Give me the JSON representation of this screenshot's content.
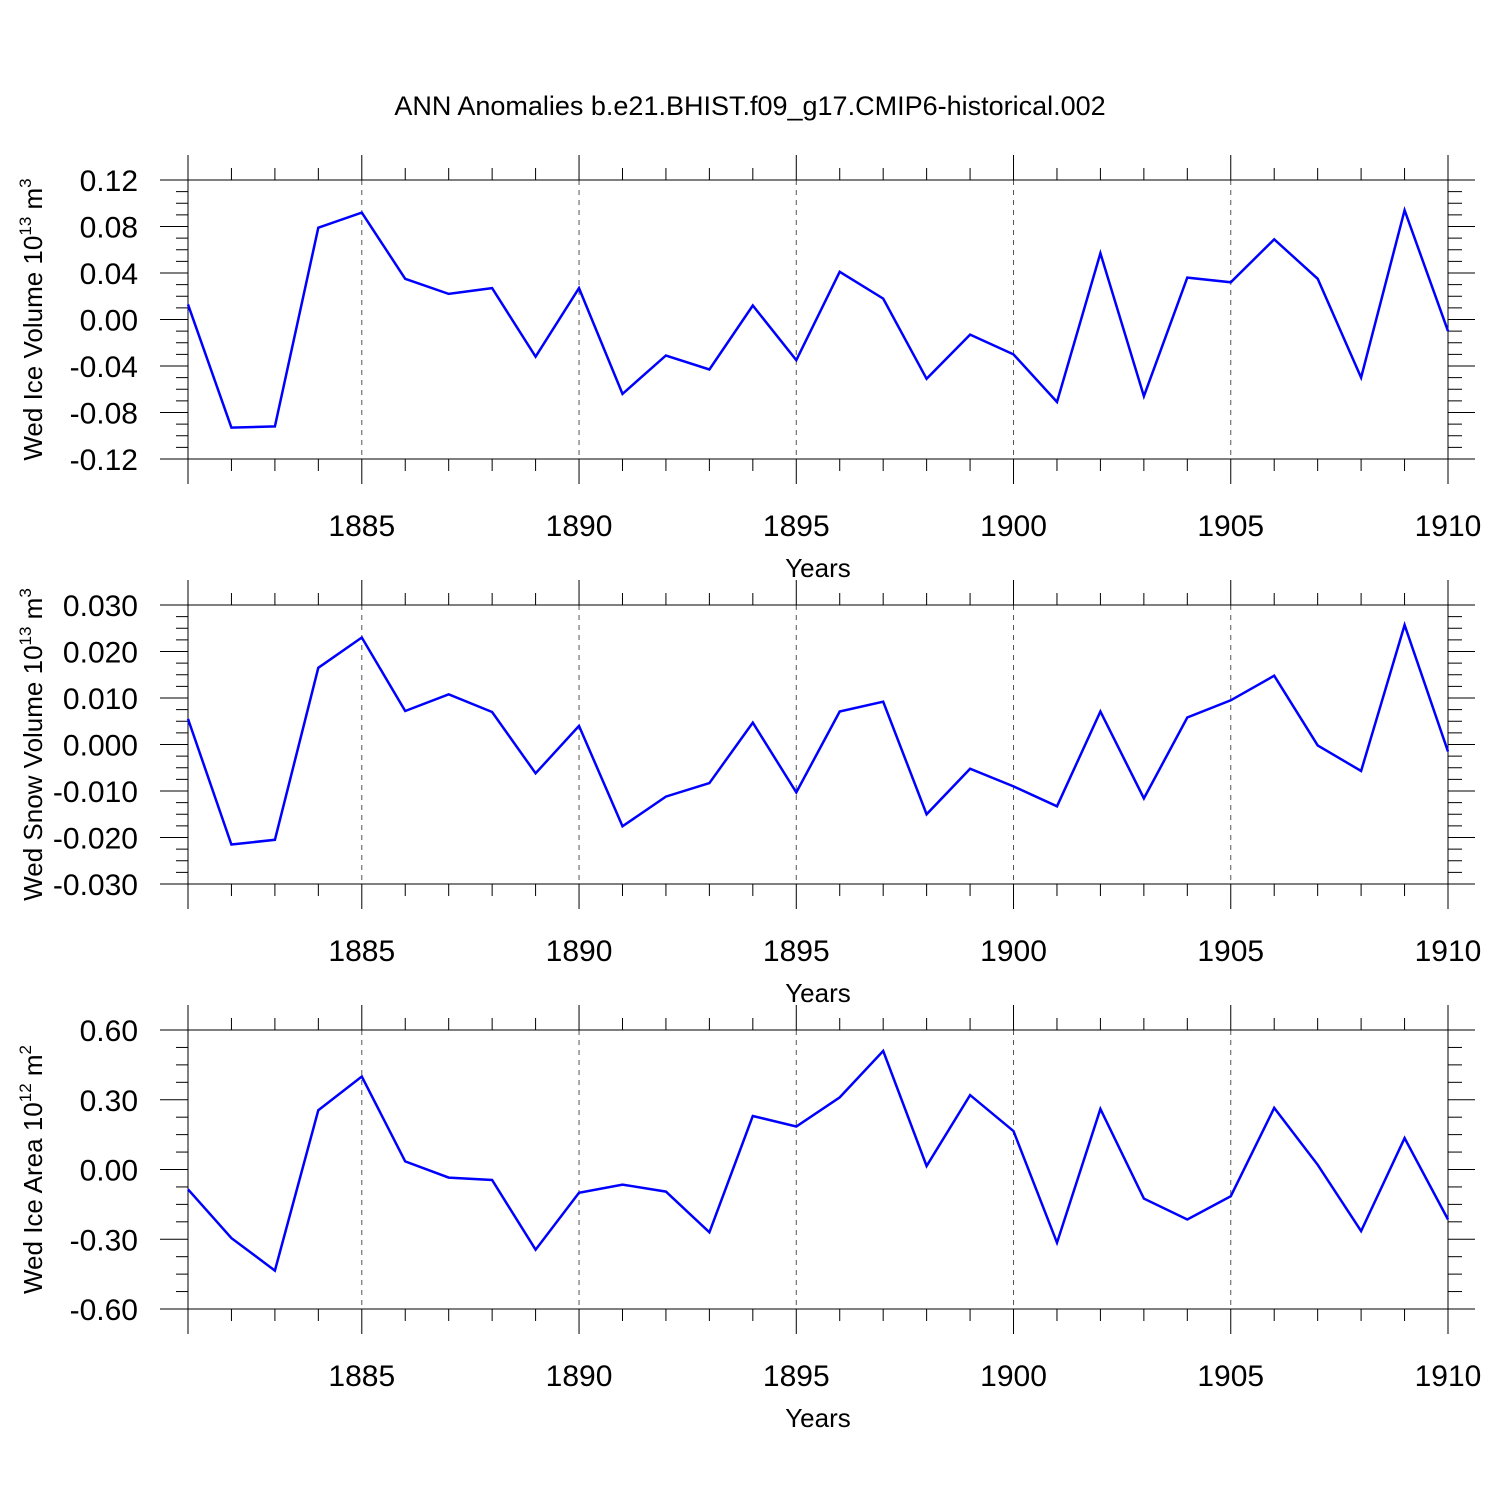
{
  "title": "ANN Anomalies b.e21.BHIST.f09_g17.CMIP6-historical.002",
  "line_color": "#0000ff",
  "chart_data": [
    {
      "type": "line",
      "ylabel": "Wed Ice Volume 10",
      "ylabel_exp": "13",
      "ylabel_unit": " m",
      "ylabel_unit_exp": "3",
      "xlabel": "Years",
      "ylim": [
        -0.12,
        0.12
      ],
      "yticks": [
        0.12,
        0.08,
        0.04,
        0.0,
        -0.04,
        -0.08,
        -0.12
      ],
      "ytick_labels": [
        "0.12",
        "0.08",
        "0.04",
        "0.00",
        "-0.04",
        "-0.08",
        "-0.12"
      ],
      "xlim": [
        1881,
        1910
      ],
      "xticks": [
        1885,
        1890,
        1895,
        1900,
        1905,
        1910
      ],
      "xtick_labels": [
        "1885",
        "1890",
        "1895",
        "1900",
        "1905",
        "1910"
      ],
      "grid": "vertical-dashed",
      "series": [
        {
          "x": [
            1881,
            1882,
            1883,
            1884,
            1885,
            1886,
            1887,
            1888,
            1889,
            1890,
            1891,
            1892,
            1893,
            1894,
            1895,
            1896,
            1897,
            1898,
            1899,
            1900,
            1901,
            1902,
            1903,
            1904,
            1905,
            1906,
            1907,
            1908,
            1909,
            1910
          ],
          "values": [
            0.013,
            -0.093,
            -0.092,
            0.079,
            0.092,
            0.035,
            0.022,
            0.027,
            -0.032,
            0.027,
            -0.064,
            -0.031,
            -0.043,
            0.012,
            -0.035,
            0.041,
            0.018,
            -0.051,
            -0.013,
            -0.03,
            -0.071,
            0.057,
            -0.066,
            0.036,
            0.032,
            0.069,
            0.035,
            -0.05,
            0.094,
            -0.01
          ]
        }
      ]
    },
    {
      "type": "line",
      "ylabel": "Wed Snow Volume 10",
      "ylabel_exp": "13",
      "ylabel_unit": " m",
      "ylabel_unit_exp": "3",
      "xlabel": "Years",
      "ylim": [
        -0.03,
        0.03
      ],
      "yticks": [
        0.03,
        0.02,
        0.01,
        0.0,
        -0.01,
        -0.02,
        -0.03
      ],
      "ytick_labels": [
        "0.030",
        "0.020",
        "0.010",
        "0.000",
        "-0.010",
        "-0.020",
        "-0.030"
      ],
      "xlim": [
        1881,
        1910
      ],
      "xticks": [
        1885,
        1890,
        1895,
        1900,
        1905,
        1910
      ],
      "xtick_labels": [
        "1885",
        "1890",
        "1895",
        "1900",
        "1905",
        "1910"
      ],
      "grid": "vertical-dashed",
      "series": [
        {
          "x": [
            1881,
            1882,
            1883,
            1884,
            1885,
            1886,
            1887,
            1888,
            1889,
            1890,
            1891,
            1892,
            1893,
            1894,
            1895,
            1896,
            1897,
            1898,
            1899,
            1900,
            1901,
            1902,
            1903,
            1904,
            1905,
            1906,
            1907,
            1908,
            1909,
            1910
          ],
          "values": [
            0.0055,
            -0.0215,
            -0.0205,
            0.0165,
            0.023,
            0.0072,
            0.0108,
            0.007,
            -0.0062,
            0.004,
            -0.0176,
            -0.0112,
            -0.0083,
            0.0047,
            -0.0103,
            0.0071,
            0.0092,
            -0.015,
            -0.0052,
            -0.009,
            -0.0133,
            0.0071,
            -0.0116,
            0.0058,
            0.0095,
            0.0148,
            -0.0002,
            -0.0057,
            0.0257,
            -0.0015
          ]
        }
      ]
    },
    {
      "type": "line",
      "ylabel": "Wed Ice Area 10",
      "ylabel_exp": "12",
      "ylabel_unit": " m",
      "ylabel_unit_exp": "2",
      "xlabel": "Years",
      "ylim": [
        -0.6,
        0.6
      ],
      "yticks": [
        0.6,
        0.3,
        0.0,
        -0.3,
        -0.6
      ],
      "ytick_labels": [
        "0.60",
        "0.30",
        "0.00",
        "-0.30",
        "-0.60"
      ],
      "xlim": [
        1881,
        1910
      ],
      "xticks": [
        1885,
        1890,
        1895,
        1900,
        1905,
        1910
      ],
      "xtick_labels": [
        "1885",
        "1890",
        "1895",
        "1900",
        "1905",
        "1910"
      ],
      "grid": "vertical-dashed",
      "series": [
        {
          "x": [
            1881,
            1882,
            1883,
            1884,
            1885,
            1886,
            1887,
            1888,
            1889,
            1890,
            1891,
            1892,
            1893,
            1894,
            1895,
            1896,
            1897,
            1898,
            1899,
            1900,
            1901,
            1902,
            1903,
            1904,
            1905,
            1906,
            1907,
            1908,
            1909,
            1910
          ],
          "values": [
            -0.085,
            -0.295,
            -0.435,
            0.255,
            0.4,
            0.035,
            -0.035,
            -0.045,
            -0.345,
            -0.1,
            -0.065,
            -0.095,
            -0.27,
            0.23,
            0.185,
            0.31,
            0.51,
            0.015,
            0.32,
            0.165,
            -0.315,
            0.26,
            -0.125,
            -0.215,
            -0.115,
            0.265,
            0.02,
            -0.265,
            0.135,
            -0.215
          ]
        }
      ]
    }
  ]
}
